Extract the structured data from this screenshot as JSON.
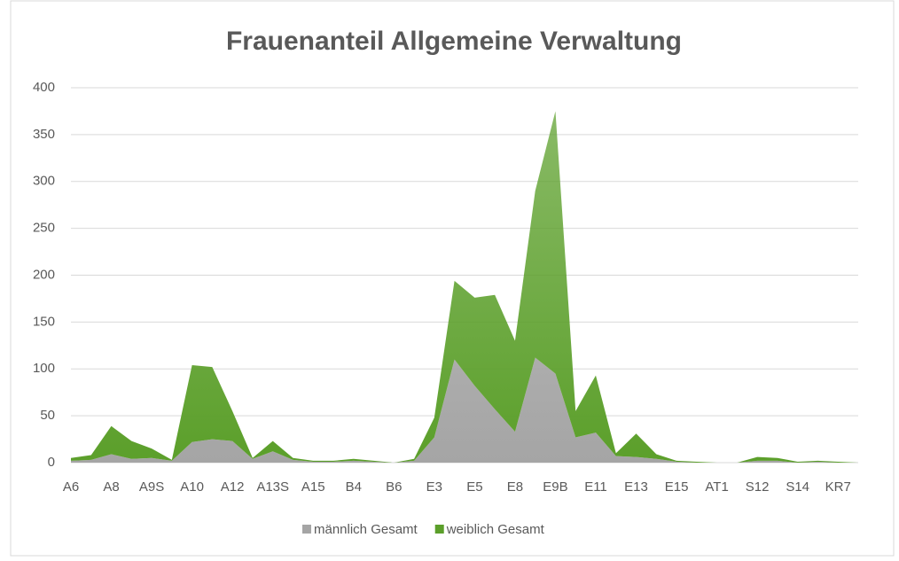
{
  "chart_data": {
    "type": "area",
    "stacked": true,
    "title": "Frauenanteil Allgemeine Verwaltung",
    "categories": [
      "A6",
      null,
      "A8",
      null,
      "A9S",
      null,
      "A10",
      null,
      "A12",
      null,
      "A13S",
      null,
      "A15",
      null,
      "B4",
      null,
      "B6",
      null,
      "E3",
      null,
      "E5",
      null,
      "E8",
      null,
      "E9B",
      null,
      "E11",
      null,
      "E13",
      null,
      "E15",
      null,
      "AT1",
      null,
      "S12",
      null,
      "S14",
      null,
      "KR7",
      null
    ],
    "series": [
      {
        "name": "männlich Gesamt",
        "color": "#a5a5a5",
        "values": [
          2,
          3,
          9,
          4,
          5,
          2,
          22,
          25,
          23,
          4,
          12,
          3,
          1,
          1,
          2,
          1,
          0,
          2,
          27,
          110,
          82,
          57,
          33,
          112,
          95,
          27,
          32,
          7,
          6,
          4,
          1,
          0,
          0,
          0,
          2,
          2,
          0,
          1,
          0,
          0
        ]
      },
      {
        "name": "weiblich Gesamt",
        "color": "#5b9f2a",
        "values": [
          3,
          5,
          30,
          19,
          10,
          1,
          82,
          77,
          32,
          1,
          11,
          2,
          1,
          1,
          2,
          1,
          0,
          2,
          21,
          84,
          94,
          122,
          97,
          178,
          280,
          28,
          61,
          3,
          25,
          5,
          1,
          1,
          0,
          0,
          4,
          3,
          1,
          1,
          1,
          0
        ]
      }
    ],
    "ylim": [
      0,
      400
    ],
    "yticks": [
      0,
      50,
      100,
      150,
      200,
      250,
      300,
      350,
      400
    ],
    "grid": true,
    "legend": "bottom"
  }
}
